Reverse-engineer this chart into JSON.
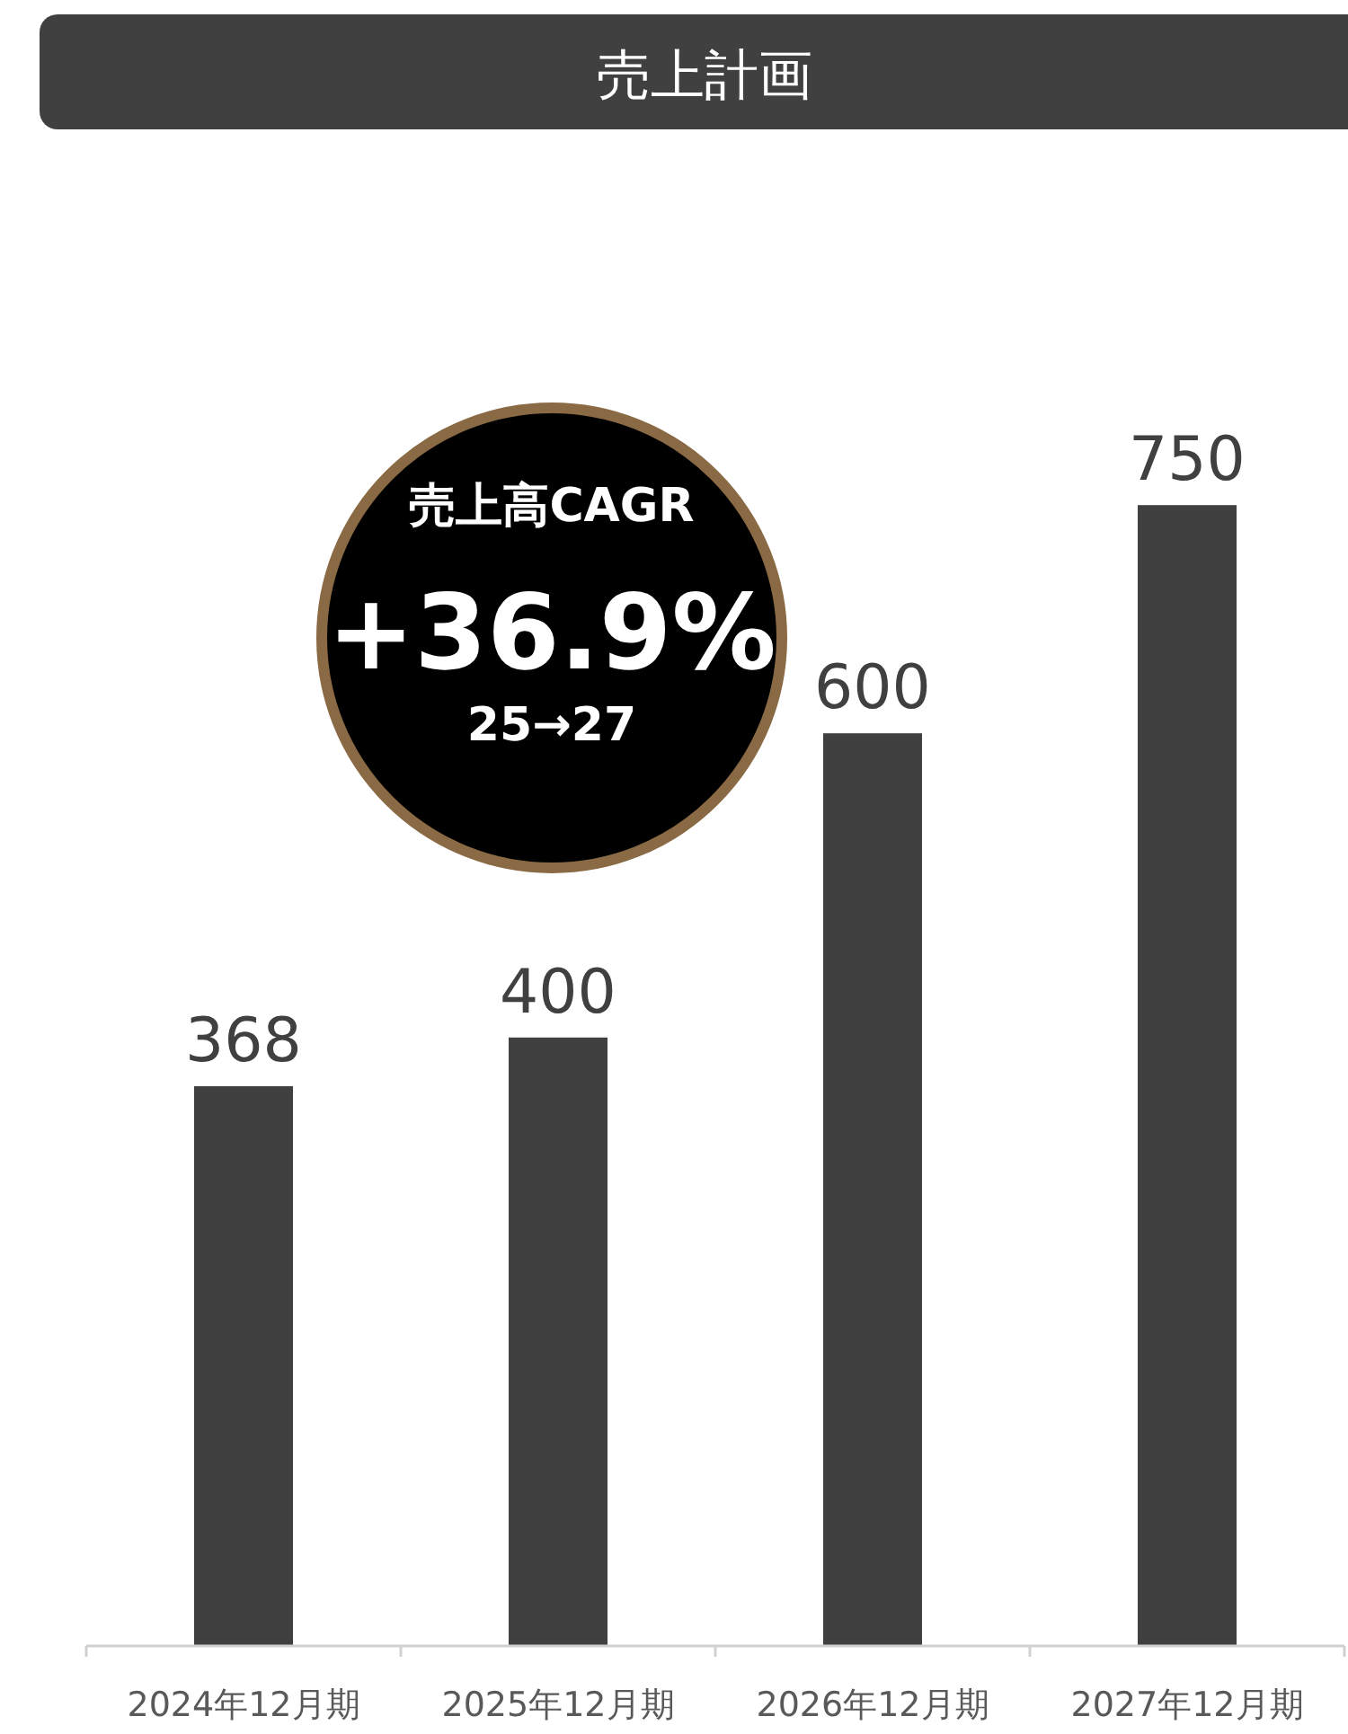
{
  "chart_data": {
    "type": "bar",
    "title": "売上計画",
    "categories": [
      "2024年12月期",
      "2025年12月期",
      "2026年12月期",
      "2027年12月期"
    ],
    "series": [
      {
        "color": "#404040",
        "values": [
          368,
          400,
          600,
          750
        ]
      }
    ],
    "data_labels": true,
    "annotations": [
      "売上高CAGR",
      "+36.9%",
      "25→27"
    ]
  }
}
